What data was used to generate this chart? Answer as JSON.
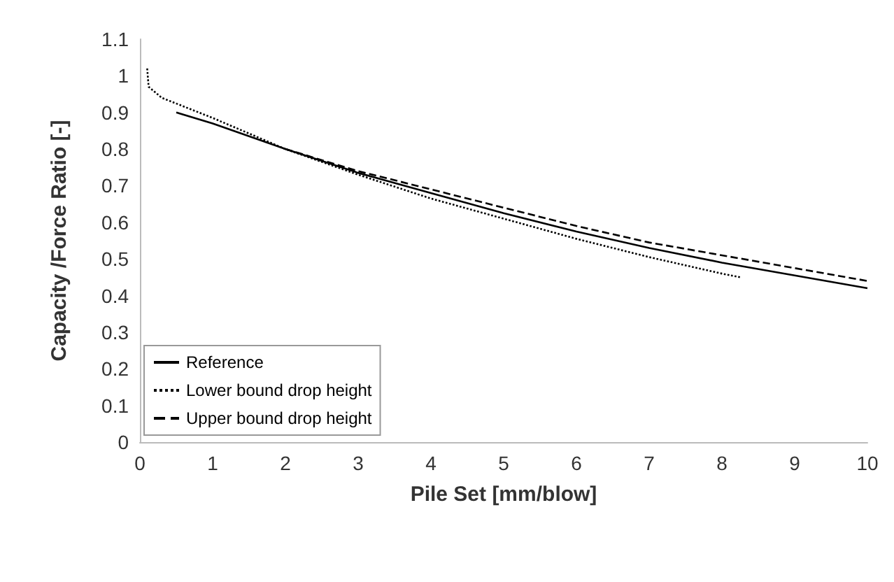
{
  "chart_data": {
    "type": "line",
    "xlabel": "Pile Set [mm/blow]",
    "ylabel": "Capacity /Force Ratio [-]",
    "xlim": [
      0,
      10
    ],
    "xticks": [
      0,
      1,
      2,
      3,
      4,
      5,
      6,
      7,
      8,
      9,
      10
    ],
    "ylim": [
      0,
      1.1
    ],
    "yticks": [
      0,
      0.1,
      0.2,
      0.3,
      0.4,
      0.5,
      0.6,
      0.7,
      0.8,
      0.9,
      1,
      1.1
    ],
    "grid": false,
    "legend": "bottom left",
    "marker": "none",
    "series": [
      {
        "name": "Reference",
        "color": "#000000",
        "line_style": "solid",
        "x": [
          0.5,
          1,
          2,
          3,
          4,
          5,
          6,
          7,
          8,
          9,
          10
        ],
        "values": [
          0.9,
          0.87,
          0.8,
          0.735,
          0.68,
          0.625,
          0.575,
          0.53,
          0.49,
          0.455,
          0.42
        ]
      },
      {
        "name": "Lower bound drop height",
        "color": "#000000",
        "line_style": "dotted",
        "x": [
          0.1,
          0.12,
          0.3,
          1,
          2,
          3,
          4,
          5,
          6,
          7,
          8,
          8.25
        ],
        "values": [
          1.02,
          0.97,
          0.94,
          0.885,
          0.8,
          0.73,
          0.665,
          0.61,
          0.555,
          0.505,
          0.46,
          0.45
        ]
      },
      {
        "name": "Upper bound drop height",
        "color": "#000000",
        "line_style": "dashed",
        "x": [
          2,
          3,
          4,
          5,
          6,
          7,
          8,
          9,
          10
        ],
        "values": [
          0.8,
          0.74,
          0.69,
          0.64,
          0.59,
          0.545,
          0.51,
          0.475,
          0.44
        ]
      }
    ]
  }
}
